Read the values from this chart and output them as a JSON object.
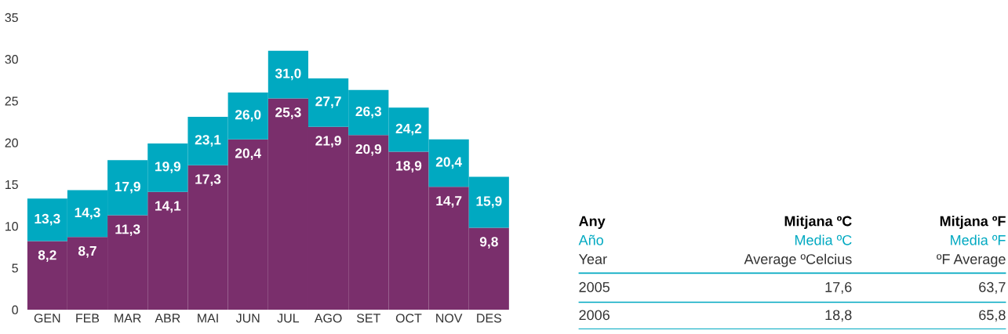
{
  "chart_data": [
    {
      "type": "bar",
      "stacked": true,
      "categories": [
        "GEN",
        "FEB",
        "MAR",
        "ABR",
        "MAI",
        "JUN",
        "JUL",
        "AGO",
        "SET",
        "OCT",
        "NOV",
        "DES"
      ],
      "series": [
        {
          "color": "#7a2f6c",
          "values": [
            8.2,
            8.7,
            11.3,
            14.1,
            17.3,
            20.4,
            25.3,
            21.9,
            20.9,
            18.9,
            14.7,
            9.8
          ],
          "value_labels": [
            "8,2",
            "8,7",
            "11,3",
            "14,1",
            "17,3",
            "20,4",
            "25,3",
            "21,9",
            "20,9",
            "18,9",
            "14,7",
            "9,8"
          ]
        },
        {
          "color": "#00a9c1",
          "values": [
            5.1,
            5.6,
            6.6,
            5.8,
            5.8,
            5.6,
            5.7,
            5.8,
            5.4,
            5.3,
            5.7,
            6.1
          ]
        }
      ],
      "totals": [
        "13,3",
        "14,3",
        "17,9",
        "19,9",
        "23,1",
        "26,0",
        "31,0",
        "27,7",
        "26,3",
        "24,2",
        "20,4",
        "15,9"
      ],
      "ylim": [
        0,
        35
      ],
      "yticks": [
        0,
        5,
        10,
        15,
        20,
        25,
        30,
        35
      ],
      "grid": false,
      "legend": false
    },
    {
      "type": "other",
      "annotations": [
        "Any",
        "Mitjana ºC",
        "Mitjana ºF",
        "Año",
        "Media ºC",
        "Media ºF",
        "Year",
        "Average ºCelcius",
        "ºF Average",
        "2005",
        "17,6",
        "63,7",
        "2006",
        "18,8",
        "65,8"
      ]
    }
  ]
}
